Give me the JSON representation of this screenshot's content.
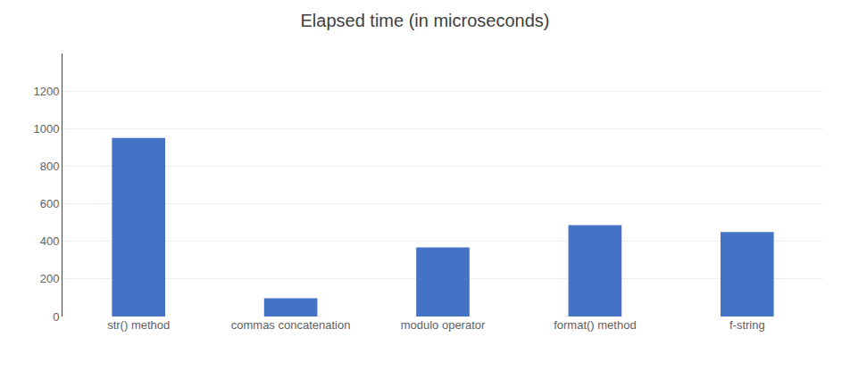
{
  "chart_data": {
    "type": "bar",
    "title": "Elapsed time (in microseconds)",
    "categories": [
      "str() method",
      "commas concatenation",
      "modulo operator",
      "format() method",
      "f-string"
    ],
    "values": [
      950,
      97,
      368,
      487,
      450
    ],
    "color": "#4472C4",
    "ylim": [
      0,
      1400
    ],
    "yticks": [
      0,
      200,
      400,
      600,
      800,
      1000,
      1200
    ],
    "grid": true
  }
}
